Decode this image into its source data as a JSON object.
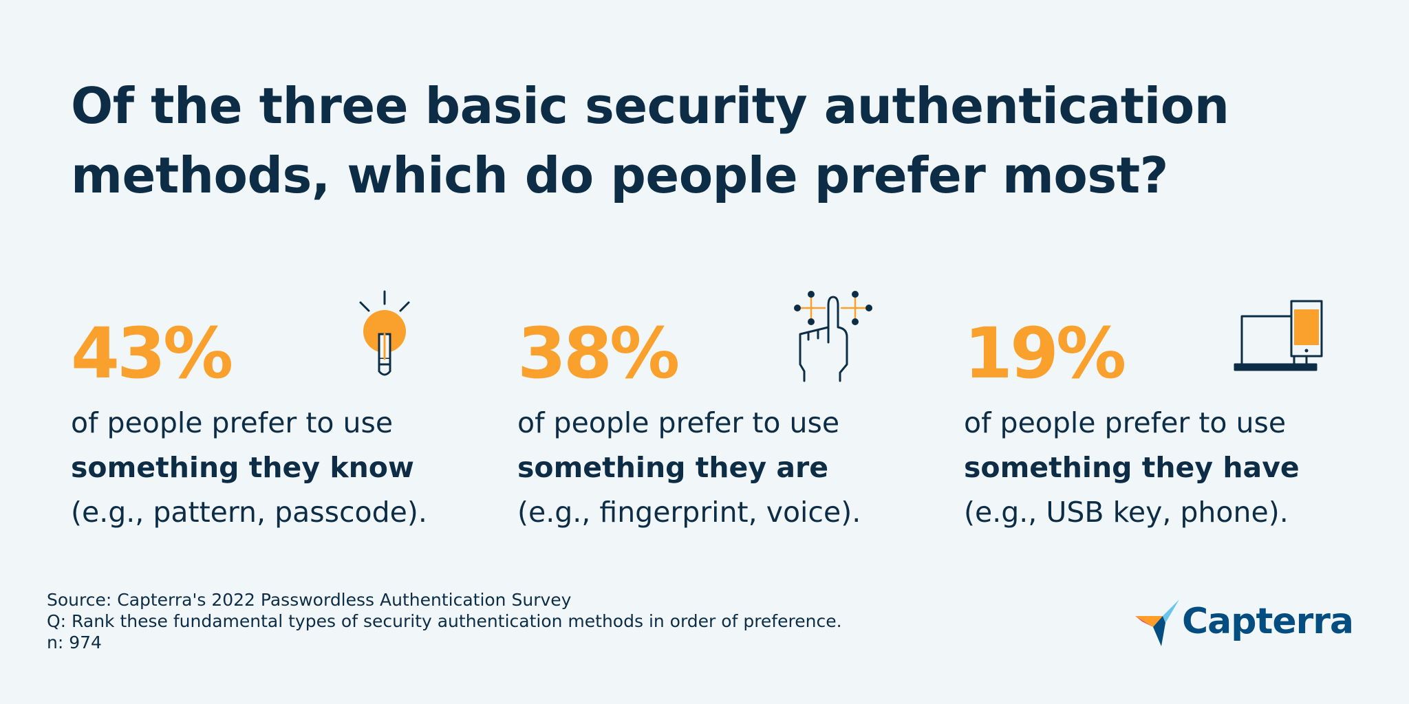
{
  "title": {
    "line1": "Of the three basic security authentication",
    "line2": "methods, which do people prefer most?"
  },
  "stats": [
    {
      "value_text": "43%",
      "line1": "of people prefer to use",
      "emphasis": "something they know",
      "example": "(e.g., pattern, passcode).",
      "icon": "lightbulb-icon"
    },
    {
      "value_text": "38%",
      "line1": "of people prefer to use",
      "emphasis": "something they are",
      "example": "(e.g., fingerprint, voice).",
      "icon": "fingerprint-hand-icon"
    },
    {
      "value_text": "19%",
      "line1": "of people prefer to use",
      "emphasis": "something they have",
      "example": "(e.g., USB key, phone).",
      "icon": "laptop-phone-icon"
    }
  ],
  "source": {
    "line1": "Source: Capterra's 2022 Passwordless Authentication Survey",
    "line2": "Q: Rank these fundamental types of security authentication methods in order of preference.",
    "line3": "n: 974"
  },
  "logo": {
    "text": "Capterra"
  },
  "colors": {
    "background": "#f1f7f8",
    "text": "#0d2c46",
    "accent": "#f9a02d",
    "logo_blue": "#044d80"
  },
  "chart_data": {
    "type": "table",
    "categories": [
      "something they know",
      "something they are",
      "something they have"
    ],
    "values": [
      43,
      38,
      19
    ]
  }
}
